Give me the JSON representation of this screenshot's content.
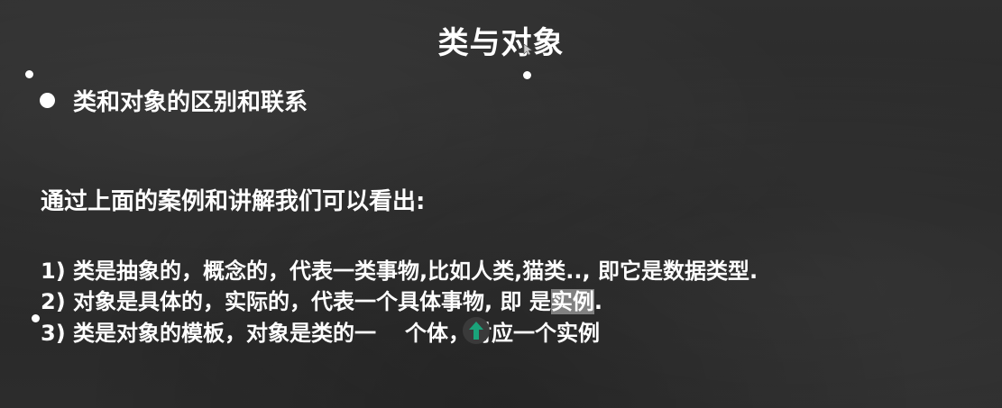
{
  "slide": {
    "title": "类与对象",
    "bullet": "类和对象的区别和联系",
    "intro": "通过上面的案例和讲解我们可以看出:",
    "point1": "1) 类是抽象的，概念的，代表一类事物,比如人类,猫类.., 即它是数据类型.",
    "point2_a": "2) 对象是具体的，实际的，代表一个具体事物, 即 是",
    "point2_highlight": "实例",
    "point2_end": ".",
    "point3_a": "3) 类是对象的模板，对象是类的一",
    "point3_b": "个体，对应一个实例"
  },
  "colors": {
    "background": "#2b2b2b",
    "text": "#ffffff",
    "highlight": "#c8c8c8",
    "cursor_arrow": "#1aa37a"
  },
  "icons": {
    "cursor": "up-arrow-cursor-icon",
    "pointer": "mouse-pointer-icon"
  }
}
